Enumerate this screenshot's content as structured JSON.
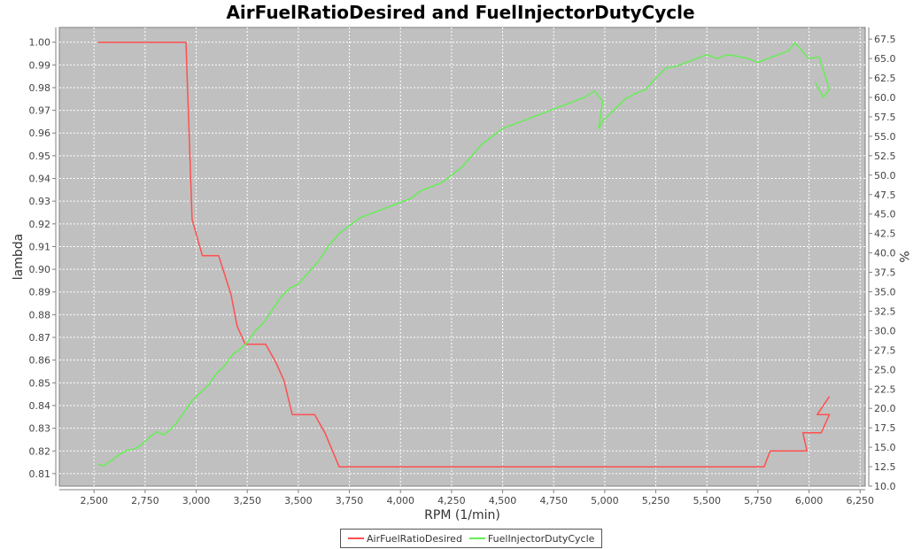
{
  "chart_data": {
    "type": "line",
    "title": "AirFuelRatioDesired and FuelInjectorDutyCycle",
    "xlabel": "RPM (1/min)",
    "ylabel": "lambda",
    "y2label": "%",
    "xlim": [
      2330,
      6275
    ],
    "ylim": [
      0.8045,
      1.0065
    ],
    "y2lim": [
      10,
      69
    ],
    "xticks": [
      "2,500",
      "2,750",
      "3,000",
      "3,250",
      "3,500",
      "3,750",
      "4,000",
      "4,250",
      "4,500",
      "4,750",
      "5,000",
      "5,250",
      "5,500",
      "5,750",
      "6,000",
      "6,250"
    ],
    "yticks": [
      "0.81",
      "0.82",
      "0.83",
      "0.84",
      "0.85",
      "0.86",
      "0.87",
      "0.88",
      "0.89",
      "0.90",
      "0.91",
      "0.92",
      "0.93",
      "0.94",
      "0.95",
      "0.96",
      "0.97",
      "0.98",
      "0.99",
      "1.00"
    ],
    "y2ticks": [
      "10.0",
      "12.5",
      "15.0",
      "17.5",
      "20.0",
      "22.5",
      "25.0",
      "27.5",
      "30.0",
      "32.5",
      "35.0",
      "37.5",
      "40.0",
      "42.5",
      "45.0",
      "47.5",
      "50.0",
      "52.5",
      "55.0",
      "57.5",
      "60.0",
      "62.5",
      "65.0",
      "67.5"
    ],
    "grid": true,
    "background": "#c0c0c0",
    "legend_position": "bottom",
    "series": [
      {
        "name": "AirFuelRatioDesired",
        "axis": "left",
        "color": "#ff5050",
        "x": [
          2520,
          2700,
          2950,
          2980,
          3030,
          3110,
          3170,
          3200,
          3240,
          3340,
          3390,
          3430,
          3470,
          3580,
          3630,
          3700,
          3800,
          4000,
          4500,
          5000,
          5500,
          5780,
          5810,
          5990,
          5970,
          6060,
          6100,
          6040,
          6100
        ],
        "y": [
          1.0,
          1.0,
          1.0,
          0.922,
          0.906,
          0.906,
          0.889,
          0.875,
          0.867,
          0.867,
          0.859,
          0.851,
          0.836,
          0.836,
          0.828,
          0.813,
          0.813,
          0.813,
          0.813,
          0.813,
          0.813,
          0.813,
          0.82,
          0.82,
          0.828,
          0.828,
          0.836,
          0.836,
          0.844
        ]
      },
      {
        "name": "FuelInjectorDutyCycle",
        "axis": "right",
        "color": "#66ee55",
        "x": [
          2520,
          2545,
          2580,
          2620,
          2660,
          2700,
          2740,
          2780,
          2810,
          2840,
          2870,
          2900,
          2940,
          2980,
          3020,
          3060,
          3100,
          3140,
          3180,
          3210,
          3250,
          3290,
          3330,
          3380,
          3420,
          3460,
          3500,
          3550,
          3600,
          3650,
          3700,
          3750,
          3800,
          3850,
          3900,
          3950,
          4000,
          4050,
          4100,
          4150,
          4200,
          4250,
          4300,
          4350,
          4400,
          4450,
          4500,
          4550,
          4600,
          4650,
          4700,
          4750,
          4800,
          4850,
          4900,
          4950,
          4990,
          4970,
          4990,
          5050,
          5100,
          5150,
          5200,
          5250,
          5300,
          5350,
          5400,
          5450,
          5500,
          5550,
          5600,
          5650,
          5700,
          5750,
          5800,
          5850,
          5900,
          5930,
          5950,
          5980,
          6000,
          6050,
          6100,
          6070,
          6030
        ],
        "y": [
          12.8,
          12.6,
          13.2,
          14.0,
          14.6,
          14.8,
          15.5,
          16.5,
          17.0,
          16.6,
          17.2,
          18.0,
          19.5,
          21.0,
          22.0,
          23.0,
          24.5,
          25.5,
          27.0,
          27.5,
          28.5,
          30.0,
          31.0,
          33.0,
          34.5,
          35.5,
          36.0,
          37.5,
          39.0,
          41.0,
          42.5,
          43.5,
          44.5,
          45.0,
          45.5,
          46.0,
          46.5,
          47.0,
          48.0,
          48.5,
          49.0,
          50.0,
          51.0,
          52.5,
          54.0,
          55.0,
          56.0,
          56.5,
          57.0,
          57.5,
          58.0,
          58.5,
          59.0,
          59.5,
          60.0,
          60.8,
          59.5,
          56.0,
          57.0,
          58.5,
          59.8,
          60.5,
          61.0,
          62.5,
          63.8,
          64.0,
          64.5,
          65.0,
          65.5,
          65.0,
          65.5,
          65.3,
          65.0,
          64.5,
          65.0,
          65.5,
          66.0,
          67.0,
          66.5,
          65.5,
          65.0,
          65.2,
          61.0,
          60.0,
          62.0
        ]
      }
    ]
  }
}
